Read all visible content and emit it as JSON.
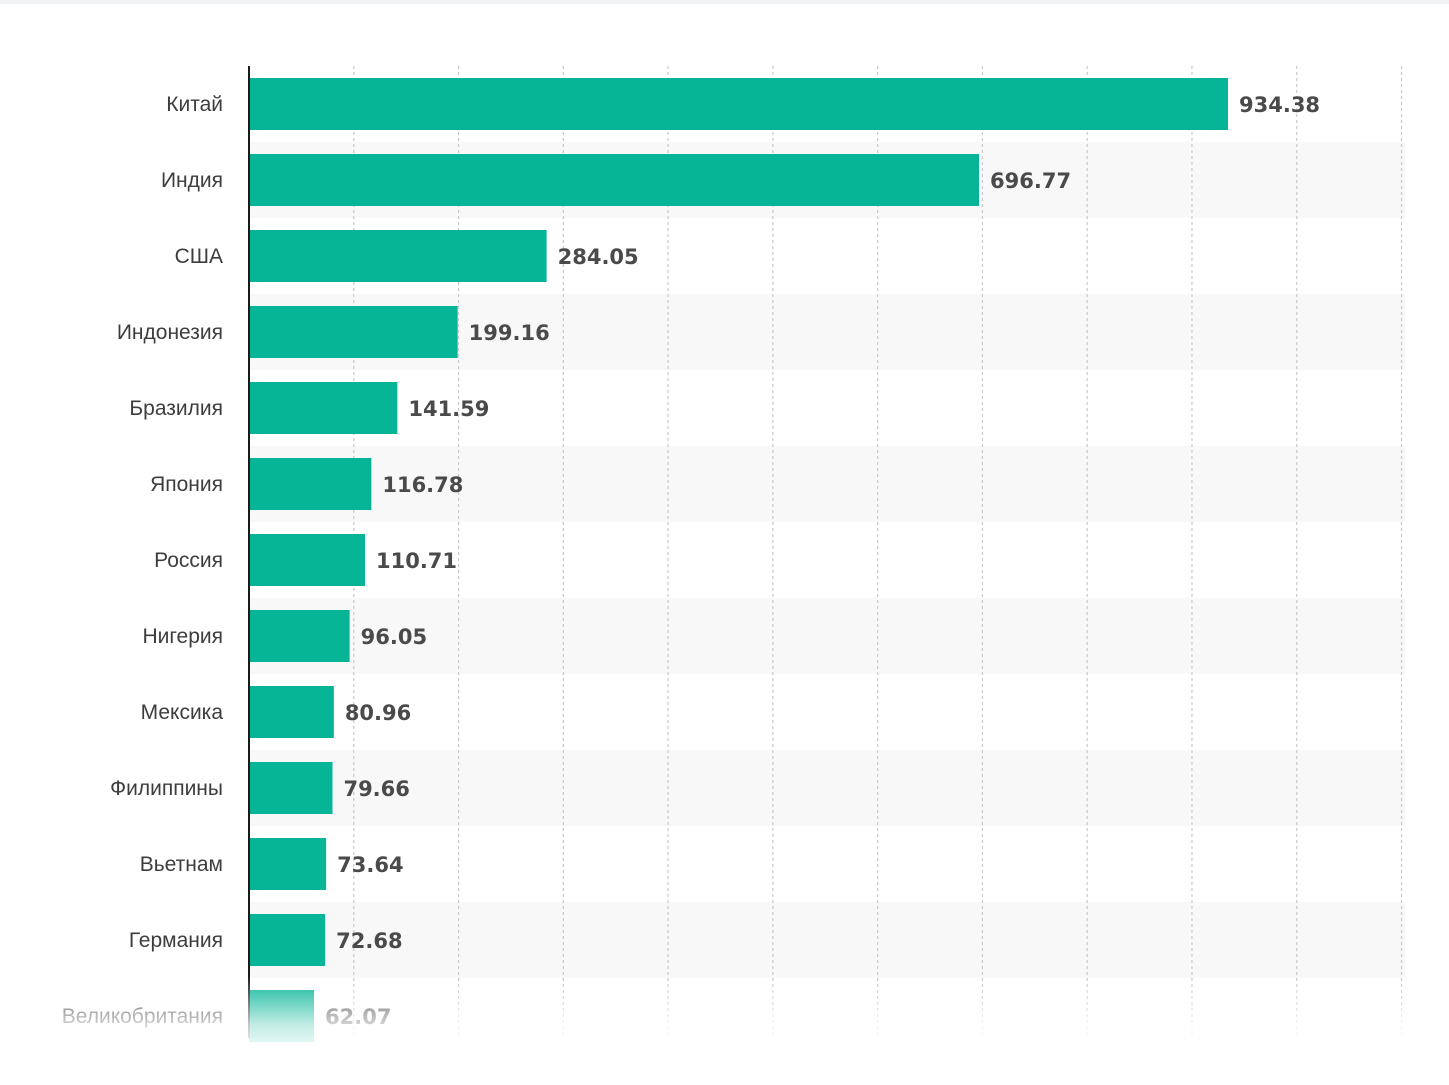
{
  "colors": {
    "bar": "#06b596",
    "axis": "#1a1a1a",
    "grid": "#c9c9c9",
    "band": "#f8f8f8"
  },
  "chart_data": {
    "type": "bar",
    "orientation": "horizontal",
    "categories": [
      "Китай",
      "Индия",
      "США",
      "Индонезия",
      "Бразилия",
      "Япония",
      "Россия",
      "Нигерия",
      "Мексика",
      "Филиппины",
      "Вьетнам",
      "Германия",
      "Великобритания"
    ],
    "values": [
      934.38,
      696.77,
      284.05,
      199.16,
      141.59,
      116.78,
      110.71,
      96.05,
      80.96,
      79.66,
      73.64,
      72.68,
      62.07
    ],
    "value_labels": [
      "934.38",
      "696.77",
      "284.05",
      "199.16",
      "141.59",
      "116.78",
      "110.71",
      "96.05",
      "80.96",
      "79.66",
      "73.64",
      "72.68",
      "62.07"
    ],
    "xlim": [
      0,
      1100
    ],
    "grid": true,
    "grid_style": "dashed vertical"
  }
}
